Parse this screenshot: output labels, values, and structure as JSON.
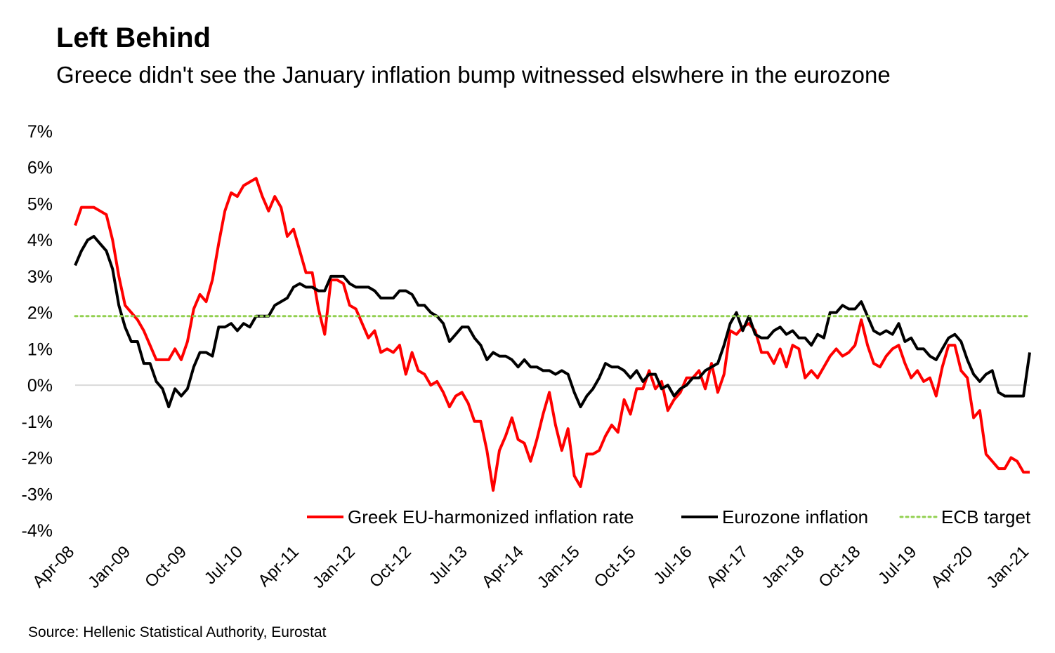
{
  "title": "Left Behind",
  "subtitle": "Greece didn't see the January inflation bump witnessed elswhere in the eurozone",
  "source": "Source: Hellenic Statistical Authority, Eurostat",
  "chart_data": {
    "type": "line",
    "start_month": "Apr-08",
    "x_tick_labels": [
      "Apr-08",
      "Jan-09",
      "Oct-09",
      "Jul-10",
      "Apr-11",
      "Jan-12",
      "Oct-12",
      "Jul-13",
      "Apr-14",
      "Jan-15",
      "Oct-15",
      "Jul-16",
      "Apr-17",
      "Jan-18",
      "Oct-18",
      "Jul-19",
      "Apr-20",
      "Jan-21"
    ],
    "y_ticks": [
      7,
      6,
      5,
      4,
      3,
      2,
      1,
      0,
      -1,
      -2,
      -3,
      -4
    ],
    "y_tick_labels": [
      "7%",
      "6%",
      "5%",
      "4%",
      "3%",
      "2%",
      "1%",
      "0%",
      "-1%",
      "-2%",
      "-3%",
      "-4%"
    ],
    "ylim": [
      -4,
      7
    ],
    "legend_position": "bottom-right",
    "series": [
      {
        "name": "Greek EU-harmonized inflation rate",
        "color": "#ff0000",
        "style": "solid",
        "values": [
          4.4,
          4.9,
          4.9,
          4.9,
          4.8,
          4.7,
          4.0,
          3.0,
          2.2,
          2.0,
          1.8,
          1.5,
          1.1,
          0.7,
          0.7,
          0.7,
          1.0,
          0.7,
          1.2,
          2.1,
          2.5,
          2.3,
          2.9,
          3.9,
          4.8,
          5.3,
          5.2,
          5.5,
          5.6,
          5.7,
          5.2,
          4.8,
          5.2,
          4.9,
          4.1,
          4.3,
          3.7,
          3.1,
          3.1,
          2.1,
          1.4,
          2.9,
          2.9,
          2.8,
          2.2,
          2.1,
          1.7,
          1.3,
          1.5,
          0.9,
          1.0,
          0.9,
          1.1,
          0.3,
          0.9,
          0.4,
          0.3,
          0.0,
          0.1,
          -0.2,
          -0.6,
          -0.3,
          -0.2,
          -0.5,
          -1.0,
          -1.0,
          -1.8,
          -2.9,
          -1.8,
          -1.4,
          -0.9,
          -1.5,
          -1.6,
          -2.1,
          -1.5,
          -0.8,
          -0.2,
          -1.1,
          -1.8,
          -1.2,
          -2.5,
          -2.8,
          -1.9,
          -1.9,
          -1.8,
          -1.4,
          -1.1,
          -1.3,
          -0.4,
          -0.8,
          -0.1,
          -0.1,
          0.4,
          -0.1,
          0.1,
          -0.7,
          -0.4,
          -0.2,
          0.2,
          0.2,
          0.4,
          -0.1,
          0.6,
          -0.2,
          0.3,
          1.5,
          1.4,
          1.6,
          1.7,
          1.5,
          0.9,
          0.9,
          0.6,
          1.0,
          0.5,
          1.1,
          1.0,
          0.2,
          0.4,
          0.2,
          0.5,
          0.8,
          1.0,
          0.8,
          0.9,
          1.1,
          1.8,
          1.1,
          0.6,
          0.5,
          0.8,
          1.0,
          1.1,
          0.6,
          0.2,
          0.4,
          0.1,
          0.2,
          -0.3,
          0.5,
          1.1,
          1.1,
          0.4,
          0.2,
          -0.9,
          -0.7,
          -1.9,
          -2.1,
          -2.3,
          -2.3,
          -2.0,
          -2.1,
          -2.4,
          -2.4
        ]
      },
      {
        "name": "Eurozone inflation",
        "color": "#000000",
        "style": "solid",
        "values": [
          3.3,
          3.7,
          4.0,
          4.1,
          3.9,
          3.7,
          3.2,
          2.2,
          1.6,
          1.2,
          1.2,
          0.6,
          0.6,
          0.1,
          -0.1,
          -0.6,
          -0.1,
          -0.3,
          -0.1,
          0.5,
          0.9,
          0.9,
          0.8,
          1.6,
          1.6,
          1.7,
          1.5,
          1.7,
          1.6,
          1.9,
          1.9,
          1.9,
          2.2,
          2.3,
          2.4,
          2.7,
          2.8,
          2.7,
          2.7,
          2.6,
          2.6,
          3.0,
          3.0,
          3.0,
          2.8,
          2.7,
          2.7,
          2.7,
          2.6,
          2.4,
          2.4,
          2.4,
          2.6,
          2.6,
          2.5,
          2.2,
          2.2,
          2.0,
          1.9,
          1.7,
          1.2,
          1.4,
          1.6,
          1.6,
          1.3,
          1.1,
          0.7,
          0.9,
          0.8,
          0.8,
          0.7,
          0.5,
          0.7,
          0.5,
          0.5,
          0.4,
          0.4,
          0.3,
          0.4,
          0.3,
          -0.2,
          -0.6,
          -0.3,
          -0.1,
          0.2,
          0.6,
          0.5,
          0.5,
          0.4,
          0.2,
          0.4,
          0.1,
          0.3,
          0.3,
          -0.1,
          0.0,
          -0.3,
          -0.1,
          0.0,
          0.2,
          0.2,
          0.4,
          0.5,
          0.6,
          1.1,
          1.7,
          2.0,
          1.5,
          1.9,
          1.4,
          1.3,
          1.3,
          1.5,
          1.6,
          1.4,
          1.5,
          1.3,
          1.3,
          1.1,
          1.4,
          1.3,
          2.0,
          2.0,
          2.2,
          2.1,
          2.1,
          2.3,
          1.9,
          1.5,
          1.4,
          1.5,
          1.4,
          1.7,
          1.2,
          1.3,
          1.0,
          1.0,
          0.8,
          0.7,
          1.0,
          1.3,
          1.4,
          1.2,
          0.7,
          0.3,
          0.1,
          0.3,
          0.4,
          -0.2,
          -0.3,
          -0.3,
          -0.3,
          -0.3,
          0.9
        ]
      },
      {
        "name": "ECB target",
        "color": "#92d050",
        "style": "dotted",
        "values": [
          1.9
        ]
      }
    ]
  }
}
